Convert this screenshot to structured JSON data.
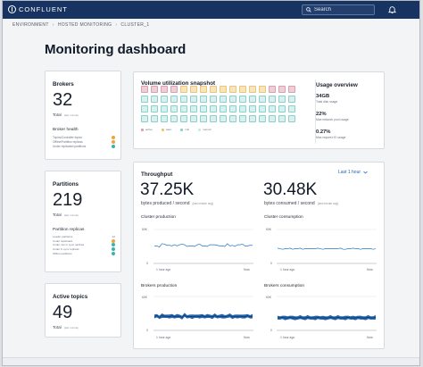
{
  "app": {
    "name": "CONFLUENT",
    "search_placeholder": "Search"
  },
  "breadcrumb": [
    "ENVIRONMENT",
    "HOSTED MONITORING",
    "CLUSTER_1"
  ],
  "page": {
    "title": "Monitoring dashboard"
  },
  "brokers": {
    "label": "Brokers",
    "value": "32",
    "total": "Total",
    "hint": "(last minute)",
    "health_title": "Broker health",
    "health_items": [
      {
        "label": "Topics/Controller topics",
        "color": "#f0a33a"
      },
      {
        "label": "Offline/Partition replicas",
        "color": "#f0a33a"
      },
      {
        "label": "Under replicated partitions",
        "color": "#39b4ad"
      }
    ]
  },
  "partitions": {
    "label": "Partitions",
    "value": "219",
    "total": "Total",
    "hint": "(last minute)",
    "replicas_title": "Partition replicas",
    "replica_items": [
      {
        "label": "Leader partitions",
        "value": "22"
      },
      {
        "label": "Under replicated",
        "value": ""
      },
      {
        "label": "Under min in sync replicas",
        "value": ""
      },
      {
        "label": "Under in sync replicas",
        "value": ""
      },
      {
        "label": "Offline partitions",
        "value": ""
      }
    ]
  },
  "active_topics": {
    "label": "Active topics",
    "value": "49",
    "total": "Total",
    "hint": "(last minute)"
  },
  "volume": {
    "title": "Volume utilization snapshot",
    "columns": 16,
    "rows": 4,
    "tile_status": [
      "active",
      "active",
      "active",
      "active",
      "warn",
      "warn",
      "warn",
      "warn",
      "warn",
      "warn",
      "warn",
      "warn",
      "warn",
      "active",
      "active",
      "active",
      "normal",
      "normal",
      "normal",
      "normal",
      "normal",
      "normal",
      "normal",
      "normal",
      "normal",
      "normal",
      "normal",
      "normal",
      "normal",
      "normal",
      "normal",
      "normal",
      "normal",
      "normal",
      "normal",
      "normal",
      "normal",
      "normal",
      "normal",
      "normal",
      "normal",
      "normal",
      "normal",
      "normal",
      "normal",
      "normal",
      "normal",
      "normal",
      "normal",
      "normal",
      "normal",
      "normal",
      "normal",
      "normal",
      "normal",
      "normal",
      "normal",
      "normal",
      "normal",
      "normal",
      "normal",
      "normal",
      "normal",
      "normal"
    ],
    "legend": [
      {
        "label": "active",
        "color": "#da9fb0"
      },
      {
        "label": "warn",
        "color": "#e9c678"
      },
      {
        "label": "info",
        "color": "#8ad0cc"
      },
      {
        "label": "normal",
        "color": "#c8ebe9"
      }
    ],
    "usage": {
      "title": "Usage overview",
      "items": [
        {
          "value": "34GB",
          "label": "Total disk usage"
        },
        {
          "value": "22%",
          "label": "Max network pool usage"
        },
        {
          "value": "0.27%",
          "label": "Max request IO usage"
        }
      ]
    }
  },
  "throughput": {
    "title": "Throughput",
    "range_label": "Last 1 hour",
    "produced_value": "37.25K",
    "produced_label": "bytes produced / second",
    "consumed_value": "30.48K",
    "consumed_label": "bytes consumed / second",
    "hint": "(last minute avg)",
    "charts": [
      {
        "title": "Cluster production",
        "y_top": "60K",
        "y_bottom": "0",
        "x_left": "1 hour ago",
        "x_right": "Now",
        "series": [
          31,
          31,
          29,
          35,
          34,
          32,
          32,
          31,
          33,
          31,
          33,
          34,
          33,
          30,
          31,
          31,
          30,
          33,
          34,
          31,
          31,
          30,
          33,
          33,
          33,
          32,
          31,
          31,
          30,
          35,
          31,
          32,
          30,
          33,
          33,
          34,
          31,
          31,
          32,
          32
        ]
      },
      {
        "title": "Cluster consumption",
        "y_top": "60K",
        "y_bottom": "0",
        "x_left": "1 hour ago",
        "x_right": "Now",
        "series": [
          27,
          26,
          25,
          26,
          26,
          27,
          25,
          26,
          26,
          27,
          25,
          26,
          26,
          26,
          26,
          26,
          27,
          26,
          25,
          26,
          26,
          26,
          26,
          26,
          26,
          27,
          25,
          25,
          26,
          26,
          27,
          26,
          26,
          25,
          26,
          26,
          26,
          26,
          25,
          26
        ]
      },
      {
        "title": "Brokers production",
        "y_top": "60K",
        "y_bottom": "0",
        "x_left": "1 hour ago",
        "x_right": "Now",
        "series": [
          24,
          26,
          23,
          26,
          25,
          25,
          24,
          26,
          24,
          25,
          25,
          23,
          27,
          24,
          25,
          24,
          25,
          25,
          24,
          26,
          24,
          25,
          25,
          24,
          26,
          24,
          25,
          25,
          24,
          25,
          26,
          24,
          25,
          24,
          25,
          25,
          24,
          26,
          24,
          25
        ]
      },
      {
        "title": "Brokers consumption",
        "y_top": "60K",
        "y_bottom": "0",
        "x_left": "1 hour ago",
        "x_right": "Now",
        "series": [
          22,
          22,
          23,
          22,
          22,
          23,
          22,
          22,
          22,
          23,
          22,
          22,
          23,
          22,
          22,
          22,
          23,
          22,
          22,
          22,
          22,
          23,
          22,
          22,
          23,
          22,
          22,
          22,
          23,
          22,
          22,
          22,
          23,
          22,
          22,
          22,
          23,
          22,
          22,
          23
        ]
      }
    ]
  }
}
